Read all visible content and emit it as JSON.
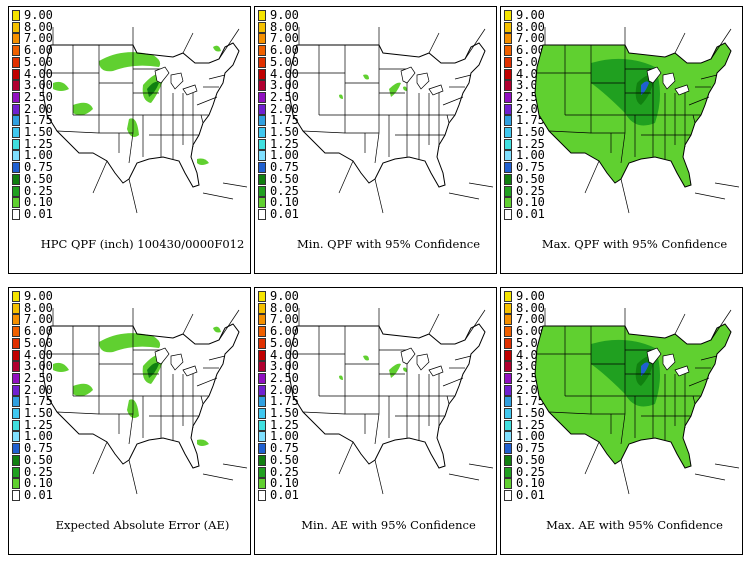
{
  "legend": {
    "labels": [
      "9.00",
      "8.00",
      "7.00",
      "6.00",
      "5.00",
      "4.00",
      "3.00",
      "2.50",
      "2.00",
      "1.75",
      "1.50",
      "1.25",
      "1.00",
      "0.75",
      "0.50",
      "0.25",
      "0.10",
      "0.01"
    ],
    "colors": [
      "#f5e400",
      "#f5c000",
      "#f59000",
      "#f06000",
      "#e03000",
      "#c00000",
      "#b00030",
      "#9010c0",
      "#7020d0",
      "#30a0e0",
      "#40c8f0",
      "#40e0e0",
      "#80e0ff",
      "#2060d0",
      "#108010",
      "#20a020",
      "#60d030",
      "#ffffff"
    ]
  },
  "panels": [
    {
      "caption": "HPC QPF (inch) 100430/0000F012",
      "coverage": "qpf"
    },
    {
      "caption": "Min. QPF with 95% Confidence",
      "coverage": "min"
    },
    {
      "caption": "Max. QPF with 95% Confidence",
      "coverage": "max"
    },
    {
      "caption": "Expected Absolute Error (AE)",
      "coverage": "qpf"
    },
    {
      "caption": "Min. AE with 95% Confidence",
      "coverage": "min"
    },
    {
      "caption": "Max. AE with 95% Confidence",
      "coverage": "max"
    }
  ]
}
